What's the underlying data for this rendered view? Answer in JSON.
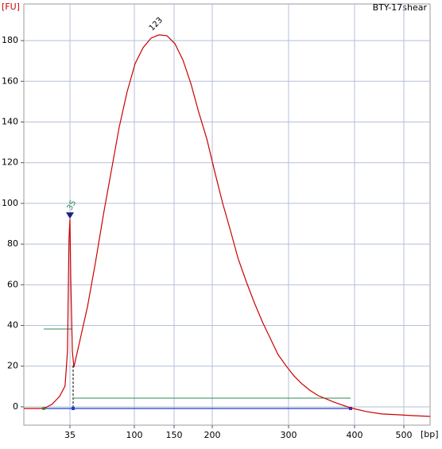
{
  "chart_data": {
    "type": "line",
    "sample": "BTY-17shear",
    "ylabel": "[FU]",
    "xlabel": "[bp]",
    "color": "#cc0000",
    "grid": true,
    "xlim": [
      20,
      553
    ],
    "ylim": [
      -9,
      198
    ],
    "xticks": [
      35,
      100,
      150,
      200,
      300,
      400,
      500
    ],
    "yticks": [
      0,
      20,
      40,
      60,
      80,
      100,
      120,
      140,
      160,
      180
    ],
    "x": [
      20,
      26.5,
      29.1,
      31.6,
      33.4,
      34.2,
      34.7,
      35,
      35.8,
      37.4,
      39,
      44.6,
      52.7,
      60.7,
      68.7,
      76.7,
      84.7,
      92.8,
      101,
      111,
      121,
      131,
      141,
      151,
      161.5,
      172,
      182,
      193,
      203,
      213.5,
      224,
      234,
      245,
      255,
      266,
      276,
      286,
      297,
      308,
      320,
      332,
      345,
      369,
      393,
      423,
      455,
      487,
      519,
      553
    ],
    "values": [
      -0.8,
      -0.8,
      1.2,
      5.1,
      10.2,
      27.4,
      82.6,
      92.4,
      63,
      27.4,
      19.6,
      31.7,
      49.3,
      70.8,
      94.3,
      115.9,
      137.4,
      155,
      168.7,
      176.5,
      181.2,
      182.8,
      182.4,
      178.5,
      170.6,
      158.9,
      145.2,
      131.5,
      115.9,
      100.2,
      86.5,
      72.8,
      61.1,
      51.3,
      41.5,
      33.7,
      25.8,
      20,
      15.3,
      11.4,
      8.2,
      5.5,
      2.3,
      -0.4,
      -2.3,
      -3.5,
      -3.9,
      -4.3,
      -4.7
    ],
    "annotations": [
      {
        "text": "35",
        "x": 35,
        "y": 94
      },
      {
        "text": "123",
        "x": 123,
        "y": 183
      }
    ]
  }
}
